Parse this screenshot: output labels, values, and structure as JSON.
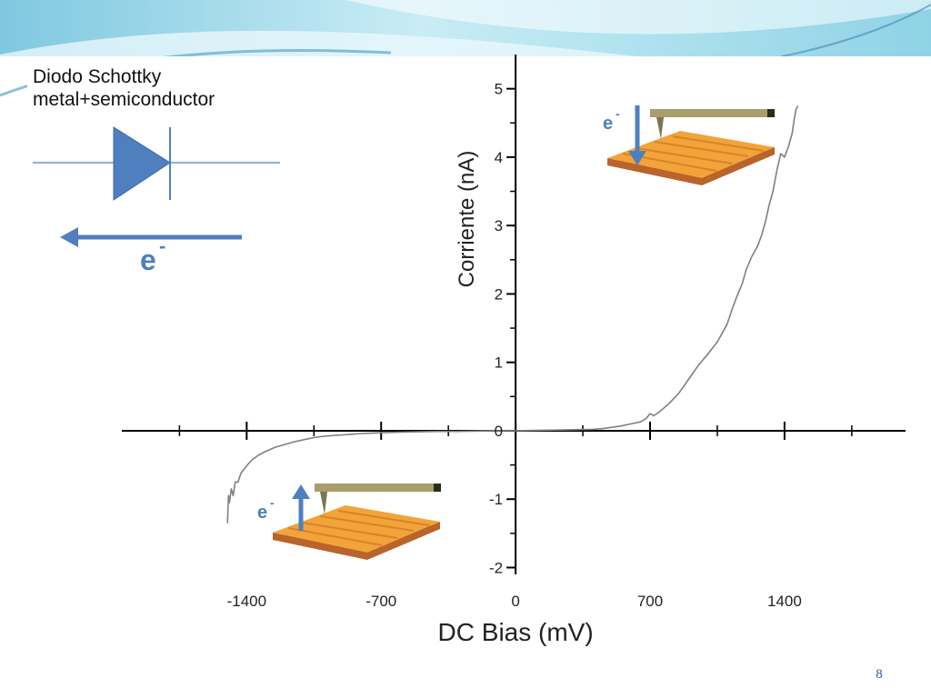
{
  "slide": {
    "page_number": "8",
    "colors": {
      "accent_blue": "#4f7fbf",
      "sky_top": "#a7dcec",
      "sky_light": "#dff4f9"
    }
  },
  "diagram": {
    "title_line1": "Diodo Schottky",
    "title_line2": "metal+semiconductor",
    "electron_label": "e",
    "electron_superscript": "-"
  },
  "insets": {
    "top_right": {
      "electron_label": "e",
      "electron_superscript": "-",
      "arrow": "down"
    },
    "bottom_left": {
      "electron_label": "e",
      "electron_superscript": "-",
      "arrow": "up"
    }
  },
  "chart_data": {
    "type": "line",
    "title": "",
    "xlabel": "DC Bias (mV)",
    "ylabel": "Corriente (nA)",
    "xlim": [
      -2050,
      2030
    ],
    "ylim": [
      -2.1,
      5.5
    ],
    "x_ticks": [
      -1400,
      -700,
      0,
      700,
      1400
    ],
    "x_tick_labels": [
      "-1400",
      "-700",
      "0",
      "700",
      "1400"
    ],
    "y_ticks": [
      -2,
      -1,
      0,
      1,
      2,
      3,
      4,
      5
    ],
    "y_tick_labels": [
      "-2",
      "-1",
      "0",
      "1",
      "2",
      "3",
      "4",
      "5"
    ],
    "grid": false,
    "series": [
      {
        "color": "#808080",
        "x": [
          -1500,
          -1495,
          -1490,
          -1480,
          -1470,
          -1460,
          -1445,
          -1430,
          -1410,
          -1390,
          -1370,
          -1340,
          -1300,
          -1250,
          -1200,
          -1150,
          -1100,
          -1050,
          -1000,
          -950,
          -900,
          -850,
          -800,
          -750,
          -700,
          -600,
          -500,
          -400,
          -300,
          -200,
          -100,
          0,
          100,
          200,
          300,
          400,
          450,
          500,
          550,
          600,
          650,
          680,
          700,
          720,
          750,
          800,
          850,
          900,
          950,
          1000,
          1050,
          1100,
          1130,
          1150,
          1180,
          1200,
          1230,
          1260,
          1280,
          1300,
          1320,
          1340,
          1360,
          1380,
          1400,
          1420,
          1440,
          1450,
          1460,
          1470
        ],
        "y": [
          -1.35,
          -0.95,
          -1.05,
          -0.85,
          -0.95,
          -0.75,
          -0.75,
          -0.62,
          -0.55,
          -0.48,
          -0.42,
          -0.36,
          -0.3,
          -0.24,
          -0.2,
          -0.16,
          -0.13,
          -0.1,
          -0.08,
          -0.07,
          -0.06,
          -0.05,
          -0.04,
          -0.035,
          -0.03,
          -0.02,
          -0.015,
          -0.01,
          -0.01,
          -0.005,
          0,
          0,
          0.005,
          0.01,
          0.015,
          0.02,
          0.03,
          0.05,
          0.07,
          0.1,
          0.13,
          0.18,
          0.25,
          0.22,
          0.28,
          0.4,
          0.55,
          0.75,
          0.95,
          1.12,
          1.3,
          1.55,
          1.8,
          1.95,
          2.15,
          2.35,
          2.55,
          2.7,
          2.85,
          3.05,
          3.3,
          3.5,
          3.8,
          4.05,
          4.0,
          4.15,
          4.35,
          4.55,
          4.7,
          4.75
        ]
      }
    ]
  }
}
